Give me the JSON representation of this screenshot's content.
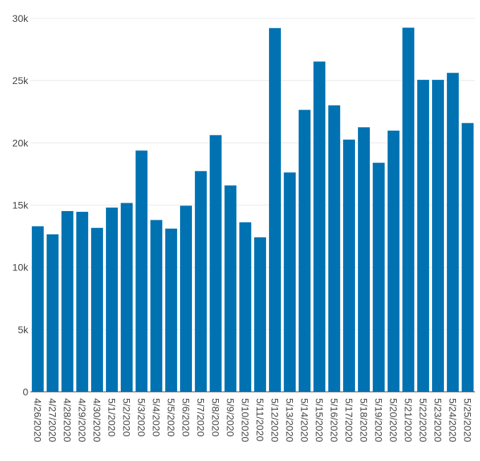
{
  "chart_data": {
    "type": "bar",
    "categories": [
      "4/26/2020",
      "4/27/2020",
      "4/28/2020",
      "4/29/2020",
      "4/30/2020",
      "5/1/2020",
      "5/2/2020",
      "5/3/2020",
      "5/4/2020",
      "5/5/2020",
      "5/6/2020",
      "5/7/2020",
      "5/8/2020",
      "5/9/2020",
      "5/10/2020",
      "5/11/2020",
      "5/12/2020",
      "5/13/2020",
      "5/14/2020",
      "5/15/2020",
      "5/16/2020",
      "5/17/2020",
      "5/18/2020",
      "5/19/2020",
      "5/20/2020",
      "5/21/2020",
      "5/22/2020",
      "5/23/2020",
      "5/24/2020",
      "5/25/2020"
    ],
    "values": [
      13300,
      12650,
      14520,
      14460,
      13170,
      14800,
      15170,
      19380,
      13800,
      13110,
      14950,
      17730,
      20620,
      16580,
      13620,
      12410,
      29220,
      17620,
      22650,
      26530,
      23010,
      20260,
      21250,
      18400,
      20980,
      29250,
      25060,
      25060,
      25620,
      21590
    ],
    "title": "",
    "xlabel": "",
    "ylabel": "",
    "ylim": [
      0,
      30000
    ],
    "yticks": [
      0,
      5000,
      10000,
      15000,
      20000,
      25000,
      30000
    ],
    "ytick_labels": [
      "0",
      "5k",
      "10k",
      "15k",
      "20k",
      "25k",
      "30k"
    ],
    "grid": "horizontal",
    "legend": "none",
    "bar_color": "#0072b2"
  }
}
